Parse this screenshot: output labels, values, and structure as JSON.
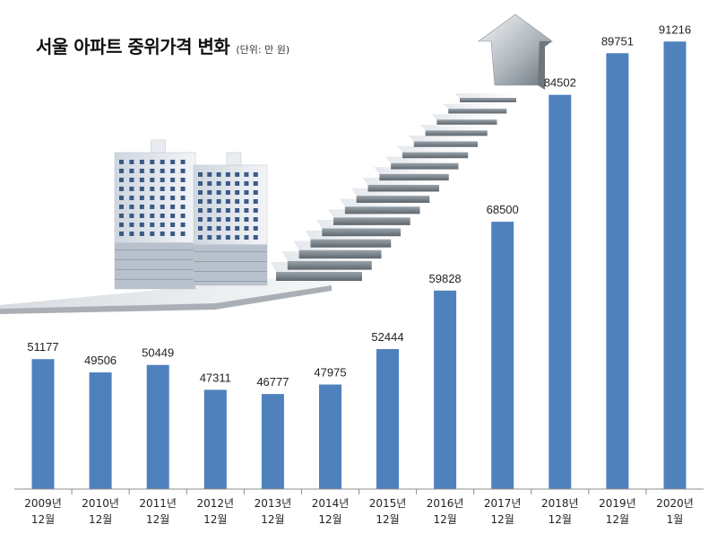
{
  "chart_data": {
    "type": "bar",
    "title": "서울 아파트 중위가격 변화",
    "subtitle": "(단위: 만 원)",
    "categories": [
      [
        "2009년",
        "12월"
      ],
      [
        "2010년",
        "12월"
      ],
      [
        "2011년",
        "12월"
      ],
      [
        "2012년",
        "12월"
      ],
      [
        "2013년",
        "12월"
      ],
      [
        "2014년",
        "12월"
      ],
      [
        "2015년",
        "12월"
      ],
      [
        "2016년",
        "12월"
      ],
      [
        "2017년",
        "12월"
      ],
      [
        "2018년",
        "12월"
      ],
      [
        "2019년",
        "12월"
      ],
      [
        "2020년",
        "1월"
      ]
    ],
    "values": [
      51177,
      49506,
      50449,
      47311,
      46777,
      47975,
      52444,
      59828,
      68500,
      84502,
      89751,
      91216
    ],
    "value_labels": [
      "51177",
      "49506",
      "50449",
      "47311",
      "46777",
      "47975",
      "52444",
      "59828",
      "68500",
      "84502",
      "89751",
      "91216"
    ],
    "ylim": [
      34800,
      92500
    ],
    "xlabel": "",
    "ylabel": "",
    "grid": false,
    "bar_color": "#4f81bd"
  }
}
